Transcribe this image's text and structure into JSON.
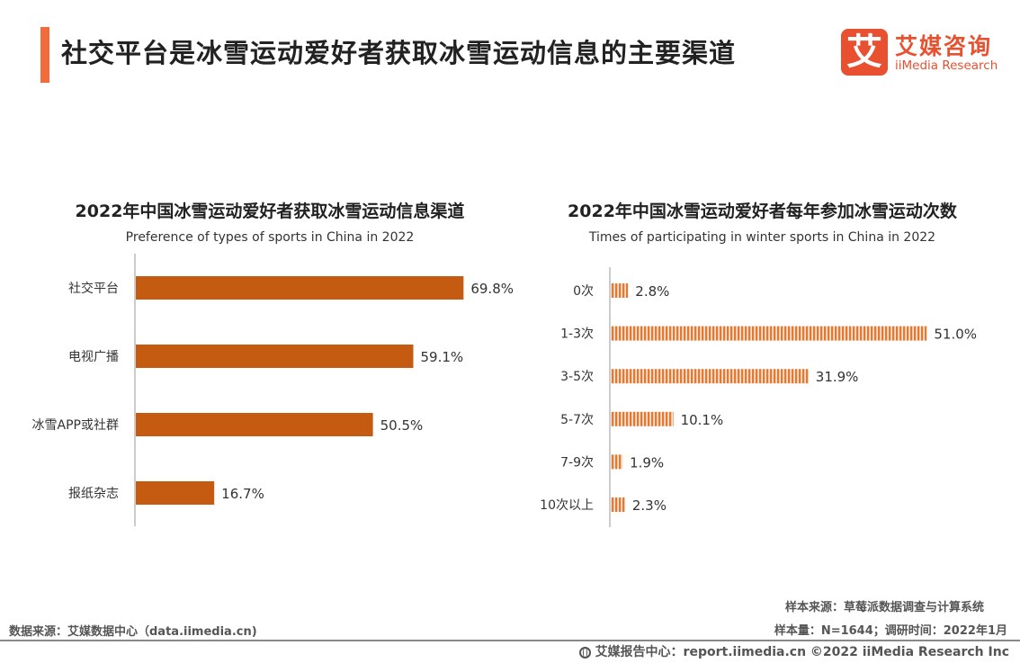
{
  "header": {
    "title": "社交平台是冰雪运动爱好者获取冰雪运动信息的主要渠道",
    "accent_color": "#f26b3a"
  },
  "logo": {
    "mark_char": "艾",
    "name_cn": "艾媒咨询",
    "name_en": "iiMedia Research"
  },
  "chart_data": [
    {
      "type": "bar",
      "orientation": "horizontal",
      "title": "2022年中国冰雪运动爱好者获取冰雪运动信息渠道",
      "subtitle": "Preference of types of sports in China in 2022",
      "categories": [
        "社交平台",
        "电视广播",
        "冰雪APP或社群",
        "报纸杂志"
      ],
      "values": [
        69.8,
        59.1,
        50.5,
        16.7
      ],
      "labels": [
        "69.8%",
        "59.1%",
        "50.5%",
        "16.7%"
      ],
      "unit": "%",
      "color": "#c55a11",
      "fill_style": "solid",
      "xlim": [
        0,
        100
      ]
    },
    {
      "type": "bar",
      "orientation": "horizontal",
      "title": "2022年中国冰雪运动爱好者每年参加冰雪运动次数",
      "subtitle": "Times of participating in winter sports in China in 2022",
      "categories": [
        "0次",
        "1-3次",
        "3-5次",
        "5-7次",
        "7-9次",
        "10次以上"
      ],
      "values": [
        2.8,
        51.0,
        31.9,
        10.1,
        1.9,
        2.3
      ],
      "labels": [
        "2.8%",
        "51.0%",
        "31.9%",
        "10.1%",
        "1.9%",
        "2.3%"
      ],
      "unit": "%",
      "color": "#e07b35",
      "fill_style": "vertical-stripes",
      "xlim": [
        0,
        100
      ]
    }
  ],
  "footer": {
    "sample_source": "样本来源：草莓派数据调查与计算系统",
    "sample_size": "样本量：N=1644；调研时间：2022年1月",
    "data_source": "数据来源：艾媒数据中心（data.iimedia.cn)",
    "report_center": "艾媒报告中心：report.iimedia.cn   ©2022  iiMedia Research  Inc"
  }
}
